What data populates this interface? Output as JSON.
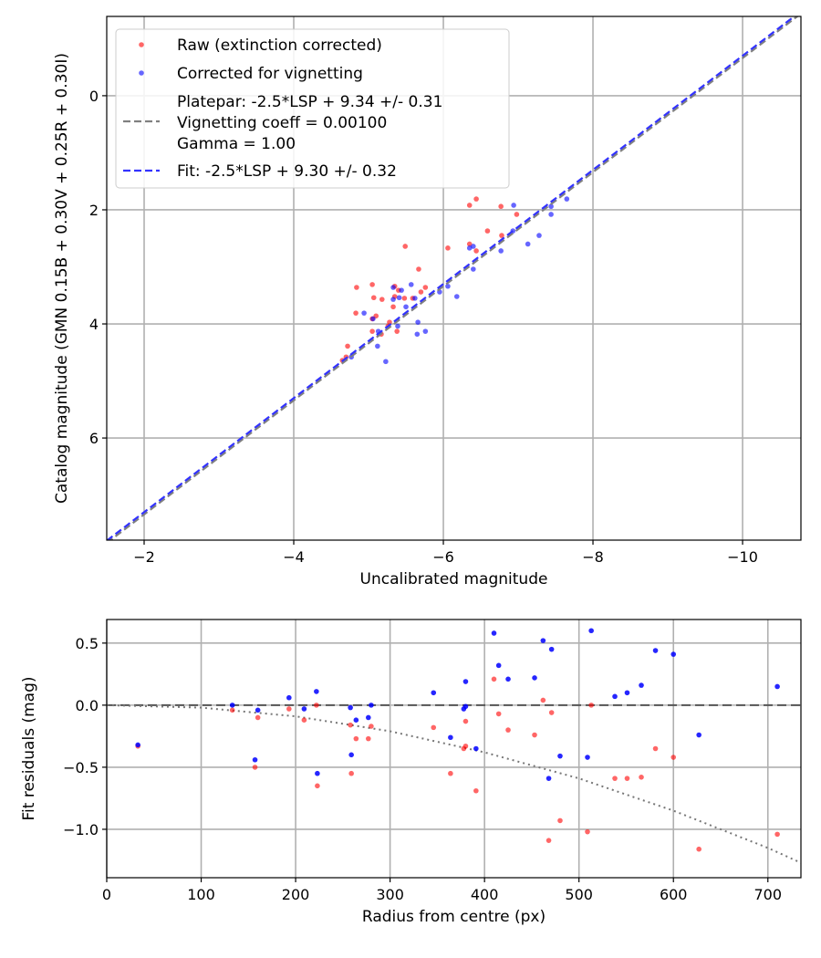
{
  "chart_data": [
    {
      "type": "scatter",
      "title": "",
      "xlabel": "Uncalibrated magnitude",
      "ylabel": "Catalog magnitude (GMN 0.15B + 0.30V + 0.25R + 0.30I)",
      "xlim": [
        -1.5,
        -10.78
      ],
      "ylim": [
        7.79,
        -1.39
      ],
      "xticks": [
        -2,
        -4,
        -6,
        -8,
        -10
      ],
      "xtick_labels": [
        "−2",
        "−4",
        "−6",
        "−8",
        "−10"
      ],
      "yticks": [
        0,
        2,
        4,
        6
      ],
      "ytick_labels": [
        "0",
        "2",
        "4",
        "6"
      ],
      "grid": true,
      "legend_position": "top-left",
      "legend": [
        "Raw (extinction corrected)",
        "Corrected for vignetting",
        "Platepar: -2.5*LSP + 9.34 +/- 0.31",
        "Vignetting coeff = 0.00100",
        "Gamma = 1.00",
        "Fit: -2.5*LSP + 9.30 +/- 0.32"
      ],
      "colors": {
        "raw": "#ff0000",
        "corrected": "#0000ff",
        "platepar": "#808080",
        "fit": "#3333ff"
      },
      "lines": [
        {
          "name": "platepar",
          "intercept": 9.34
        },
        {
          "name": "fit",
          "intercept": 9.3
        }
      ],
      "series": [
        {
          "name": "Raw (extinction corrected)",
          "points": [
            [
              -6.44,
              1.81
            ],
            [
              -6.35,
              1.92
            ],
            [
              -6.77,
              1.94
            ],
            [
              -6.98,
              2.08
            ],
            [
              -6.59,
              2.37
            ],
            [
              -6.78,
              2.45
            ],
            [
              -5.49,
              2.64
            ],
            [
              -6.06,
              2.67
            ],
            [
              -6.35,
              2.6
            ],
            [
              -6.44,
              2.72
            ],
            [
              -5.67,
              3.04
            ],
            [
              -4.84,
              3.36
            ],
            [
              -5.05,
              3.31
            ],
            [
              -5.35,
              3.34
            ],
            [
              -5.4,
              3.41
            ],
            [
              -5.76,
              3.36
            ],
            [
              -5.7,
              3.44
            ],
            [
              -5.07,
              3.54
            ],
            [
              -5.18,
              3.57
            ],
            [
              -5.35,
              3.52
            ],
            [
              -5.48,
              3.55
            ],
            [
              -5.59,
              3.55
            ],
            [
              -5.33,
              3.7
            ],
            [
              -4.83,
              3.81
            ],
            [
              -5.1,
              3.86
            ],
            [
              -5.05,
              3.91
            ],
            [
              -5.28,
              3.97
            ],
            [
              -5.05,
              4.13
            ],
            [
              -5.17,
              4.18
            ],
            [
              -5.38,
              4.13
            ],
            [
              -5.26,
              4.04
            ],
            [
              -4.72,
              4.39
            ],
            [
              -4.65,
              4.64
            ],
            [
              -4.7,
              4.58
            ]
          ]
        },
        {
          "name": "Corrected for vignetting",
          "points": [
            [
              -6.94,
              1.92
            ],
            [
              -7.44,
              1.94
            ],
            [
              -7.65,
              1.81
            ],
            [
              -7.44,
              2.08
            ],
            [
              -6.93,
              2.37
            ],
            [
              -7.28,
              2.45
            ],
            [
              -7.13,
              2.6
            ],
            [
              -6.77,
              2.72
            ],
            [
              -6.35,
              2.67
            ],
            [
              -6.4,
              2.64
            ],
            [
              -6.4,
              3.04
            ],
            [
              -5.57,
              3.31
            ],
            [
              -5.33,
              3.36
            ],
            [
              -5.44,
              3.41
            ],
            [
              -6.06,
              3.34
            ],
            [
              -5.95,
              3.44
            ],
            [
              -6.18,
              3.52
            ],
            [
              -5.33,
              3.57
            ],
            [
              -5.41,
              3.54
            ],
            [
              -5.62,
              3.55
            ],
            [
              -5.5,
              3.7
            ],
            [
              -4.94,
              3.81
            ],
            [
              -5.06,
              3.91
            ],
            [
              -5.39,
              4.04
            ],
            [
              -5.66,
              3.97
            ],
            [
              -5.65,
              4.18
            ],
            [
              -5.76,
              4.13
            ],
            [
              -5.12,
              4.39
            ],
            [
              -5.23,
              4.66
            ],
            [
              -4.77,
              4.58
            ],
            [
              -5.13,
              4.13
            ]
          ]
        }
      ]
    },
    {
      "type": "scatter",
      "title": "",
      "xlabel": "Radius from centre (px)",
      "ylabel": "Fit residuals (mag)",
      "xlim": [
        0,
        735
      ],
      "ylim": [
        -1.39,
        0.69
      ],
      "xticks": [
        0,
        100,
        200,
        300,
        400,
        500,
        600,
        700
      ],
      "xtick_labels": [
        "0",
        "100",
        "200",
        "300",
        "400",
        "500",
        "600",
        "700"
      ],
      "yticks": [
        0.5,
        0,
        -0.5,
        -1
      ],
      "ytick_labels": [
        "0.5",
        "0.0",
        "−0.5",
        "−1.0"
      ],
      "grid": true,
      "radius": [
        33,
        133,
        157,
        160,
        193,
        209,
        222,
        223,
        258,
        259,
        264,
        277,
        280,
        346,
        364,
        378,
        380,
        380,
        391,
        410,
        415,
        425,
        453,
        462,
        468,
        471,
        480,
        509,
        513,
        538,
        551,
        566,
        581,
        600,
        627,
        710
      ],
      "series": [
        {
          "name": "Raw",
          "values": [
            -0.33,
            -0.04,
            -0.5,
            -0.1,
            -0.03,
            -0.12,
            0,
            -0.65,
            -0.16,
            -0.55,
            -0.27,
            -0.27,
            -0.17,
            -0.18,
            -0.55,
            -0.35,
            -0.33,
            -0.13,
            -0.69,
            0.21,
            -0.07,
            -0.2,
            -0.24,
            0.04,
            -1.09,
            -0.06,
            -0.93,
            -1.02,
            0,
            -0.59,
            -0.59,
            -0.58,
            -0.35,
            -0.42,
            -1.16,
            -1.04
          ]
        },
        {
          "name": "Corrected",
          "values": [
            -0.32,
            0,
            -0.44,
            -0.04,
            0.06,
            -0.03,
            0.11,
            -0.55,
            -0.02,
            -0.4,
            -0.12,
            -0.1,
            0,
            0.1,
            -0.26,
            -0.03,
            -0.01,
            0.19,
            -0.35,
            0.58,
            0.32,
            0.21,
            0.22,
            0.52,
            -0.59,
            0.45,
            -0.41,
            -0.42,
            0.6,
            0.07,
            0.1,
            0.16,
            0.44,
            0.41,
            -0.24,
            0.15
          ]
        }
      ],
      "zero_line": 0,
      "vignetting_curve": {
        "r": [
          0,
          100,
          200,
          300,
          400,
          500,
          600,
          700,
          735
        ],
        "mag": [
          0,
          -0.02,
          -0.09,
          -0.21,
          -0.38,
          -0.59,
          -0.85,
          -1.15,
          -1.27
        ]
      }
    }
  ]
}
